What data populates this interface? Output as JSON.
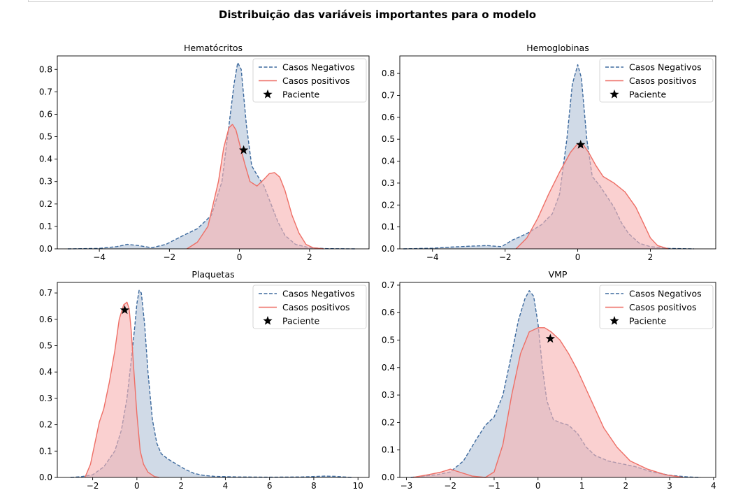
{
  "suptitle": "Distribuição das variáveis importantes para o modelo",
  "legend": {
    "neg": "Casos Negativos",
    "pos": "Casos positivos",
    "pac": "Paciente"
  },
  "colors": {
    "neg_line": "#3d6a9e",
    "neg_fill": "#b3c3d9",
    "pos_line": "#ee6f66",
    "pos_fill": "#f7b3b3",
    "star": "#000000"
  },
  "chart_data": [
    {
      "type": "area",
      "title": "Hematócritos",
      "xlim": [
        -5.2,
        3.7
      ],
      "ylim": [
        0,
        0.86
      ],
      "xticks": [
        -4,
        -2,
        0,
        2
      ],
      "yticks": [
        0.0,
        0.1,
        0.2,
        0.3,
        0.4,
        0.5,
        0.6,
        0.7,
        0.8
      ],
      "series": [
        {
          "name": "Casos Negativos",
          "x": [
            -4.9,
            -4.0,
            -3.5,
            -3.2,
            -2.9,
            -2.5,
            -2.1,
            -1.6,
            -1.2,
            -0.8,
            -0.5,
            -0.3,
            -0.15,
            -0.05,
            0.05,
            0.2,
            0.35,
            0.5,
            0.7,
            0.9,
            1.1,
            1.3,
            1.6,
            2.0,
            2.5,
            3.3
          ],
          "y": [
            0.0,
            0.002,
            0.01,
            0.02,
            0.015,
            0.005,
            0.02,
            0.06,
            0.09,
            0.15,
            0.3,
            0.55,
            0.74,
            0.83,
            0.8,
            0.55,
            0.37,
            0.33,
            0.28,
            0.2,
            0.12,
            0.06,
            0.02,
            0.005,
            0.001,
            0.0
          ]
        },
        {
          "name": "Casos positivos",
          "x": [
            -1.5,
            -1.2,
            -0.9,
            -0.6,
            -0.45,
            -0.3,
            -0.2,
            -0.1,
            0.0,
            0.15,
            0.3,
            0.5,
            0.7,
            0.85,
            1.0,
            1.15,
            1.3,
            1.5,
            1.7,
            1.9,
            2.1,
            2.4
          ],
          "y": [
            0.0,
            0.03,
            0.1,
            0.3,
            0.45,
            0.54,
            0.555,
            0.53,
            0.47,
            0.38,
            0.3,
            0.28,
            0.31,
            0.335,
            0.34,
            0.32,
            0.26,
            0.15,
            0.07,
            0.02,
            0.005,
            0.0
          ]
        },
        {
          "name": "Paciente",
          "x": [
            0.12
          ],
          "y": [
            0.44
          ]
        }
      ]
    },
    {
      "type": "area",
      "title": "Hemoglobinas",
      "xlim": [
        -4.9,
        3.8
      ],
      "ylim": [
        0,
        0.88
      ],
      "xticks": [
        -4,
        -2,
        0,
        2
      ],
      "yticks": [
        0.0,
        0.1,
        0.2,
        0.3,
        0.4,
        0.5,
        0.6,
        0.7,
        0.8
      ],
      "series": [
        {
          "name": "Casos Negativos",
          "x": [
            -4.8,
            -4.0,
            -3.5,
            -3.0,
            -2.5,
            -2.1,
            -1.8,
            -1.4,
            -1.0,
            -0.7,
            -0.5,
            -0.3,
            -0.15,
            0.0,
            0.1,
            0.25,
            0.4,
            0.6,
            0.8,
            1.0,
            1.2,
            1.4,
            1.7,
            2.0,
            2.5,
            3.2
          ],
          "y": [
            0.0,
            0.003,
            0.008,
            0.012,
            0.015,
            0.01,
            0.04,
            0.07,
            0.11,
            0.16,
            0.25,
            0.5,
            0.75,
            0.84,
            0.78,
            0.5,
            0.33,
            0.29,
            0.24,
            0.19,
            0.12,
            0.07,
            0.025,
            0.01,
            0.002,
            0.0
          ]
        },
        {
          "name": "Casos positivos",
          "x": [
            -1.7,
            -1.4,
            -1.1,
            -0.8,
            -0.5,
            -0.2,
            0.0,
            0.15,
            0.3,
            0.5,
            0.7,
            1.0,
            1.3,
            1.6,
            1.8,
            2.0,
            2.2,
            2.5
          ],
          "y": [
            0.0,
            0.05,
            0.14,
            0.25,
            0.35,
            0.44,
            0.48,
            0.475,
            0.44,
            0.38,
            0.33,
            0.3,
            0.26,
            0.19,
            0.12,
            0.05,
            0.015,
            0.0
          ]
        },
        {
          "name": "Paciente",
          "x": [
            0.08
          ],
          "y": [
            0.475
          ]
        }
      ]
    },
    {
      "type": "area",
      "title": "Plaquetas",
      "xlim": [
        -3.6,
        10.5
      ],
      "ylim": [
        0,
        0.74
      ],
      "xticks": [
        -2,
        0,
        2,
        4,
        6,
        8,
        10
      ],
      "yticks": [
        0.0,
        0.1,
        0.2,
        0.3,
        0.4,
        0.5,
        0.6,
        0.7
      ],
      "series": [
        {
          "name": "Casos Negativos",
          "x": [
            -3.0,
            -2.5,
            -2.0,
            -1.5,
            -1.0,
            -0.7,
            -0.45,
            -0.25,
            -0.1,
            0.0,
            0.1,
            0.2,
            0.35,
            0.5,
            0.7,
            0.9,
            1.1,
            1.4,
            1.8,
            2.2,
            2.6,
            3.0,
            3.5,
            4.5,
            6.0,
            7.5,
            8.5,
            9.0,
            9.7
          ],
          "y": [
            0.0,
            0.003,
            0.01,
            0.04,
            0.1,
            0.18,
            0.3,
            0.45,
            0.57,
            0.66,
            0.71,
            0.7,
            0.58,
            0.4,
            0.22,
            0.13,
            0.09,
            0.07,
            0.05,
            0.03,
            0.015,
            0.008,
            0.004,
            0.002,
            0.001,
            0.002,
            0.005,
            0.004,
            0.0
          ]
        },
        {
          "name": "Casos positivos",
          "x": [
            -2.35,
            -2.1,
            -1.9,
            -1.7,
            -1.5,
            -1.25,
            -1.0,
            -0.8,
            -0.6,
            -0.45,
            -0.35,
            -0.25,
            -0.15,
            0.0,
            0.15,
            0.3,
            0.5,
            0.8,
            1.0
          ],
          "y": [
            0.0,
            0.05,
            0.13,
            0.21,
            0.26,
            0.36,
            0.48,
            0.6,
            0.655,
            0.665,
            0.64,
            0.55,
            0.42,
            0.24,
            0.1,
            0.05,
            0.02,
            0.003,
            0.0
          ]
        },
        {
          "name": "Paciente",
          "x": [
            -0.55
          ],
          "y": [
            0.635
          ]
        }
      ]
    },
    {
      "type": "area",
      "title": "VMP",
      "xlim": [
        -3.15,
        4.05
      ],
      "ylim": [
        0,
        0.71
      ],
      "xticks": [
        -3,
        -2,
        -1,
        0,
        1,
        2,
        3,
        4
      ],
      "yticks": [
        0.0,
        0.1,
        0.2,
        0.3,
        0.4,
        0.5,
        0.6,
        0.7
      ],
      "series": [
        {
          "name": "Casos Negativos",
          "x": [
            -2.9,
            -2.6,
            -2.3,
            -2.0,
            -1.7,
            -1.4,
            -1.2,
            -1.0,
            -0.8,
            -0.6,
            -0.45,
            -0.3,
            -0.2,
            -0.1,
            0.0,
            0.1,
            0.2,
            0.35,
            0.5,
            0.7,
            0.9,
            1.1,
            1.3,
            1.6,
            1.9,
            2.2,
            2.6,
            3.0,
            3.4,
            3.7
          ],
          "y": [
            0.0,
            0.005,
            0.01,
            0.02,
            0.06,
            0.14,
            0.19,
            0.22,
            0.3,
            0.45,
            0.57,
            0.65,
            0.68,
            0.66,
            0.56,
            0.4,
            0.28,
            0.21,
            0.2,
            0.19,
            0.16,
            0.11,
            0.08,
            0.06,
            0.05,
            0.04,
            0.02,
            0.008,
            0.002,
            0.0
          ]
        },
        {
          "name": "Casos positivos",
          "x": [
            -2.85,
            -2.5,
            -2.2,
            -2.0,
            -1.8,
            -1.5,
            -1.2,
            -1.0,
            -0.8,
            -0.6,
            -0.4,
            -0.2,
            0.0,
            0.15,
            0.3,
            0.5,
            0.7,
            0.9,
            1.1,
            1.3,
            1.5,
            1.8,
            2.1,
            2.5,
            2.9,
            3.3
          ],
          "y": [
            0.0,
            0.01,
            0.02,
            0.03,
            0.02,
            0.005,
            0.0,
            0.02,
            0.12,
            0.3,
            0.45,
            0.53,
            0.545,
            0.545,
            0.53,
            0.5,
            0.45,
            0.39,
            0.32,
            0.25,
            0.18,
            0.11,
            0.06,
            0.03,
            0.01,
            0.0
          ]
        },
        {
          "name": "Paciente",
          "x": [
            0.28
          ],
          "y": [
            0.505
          ]
        }
      ]
    }
  ]
}
